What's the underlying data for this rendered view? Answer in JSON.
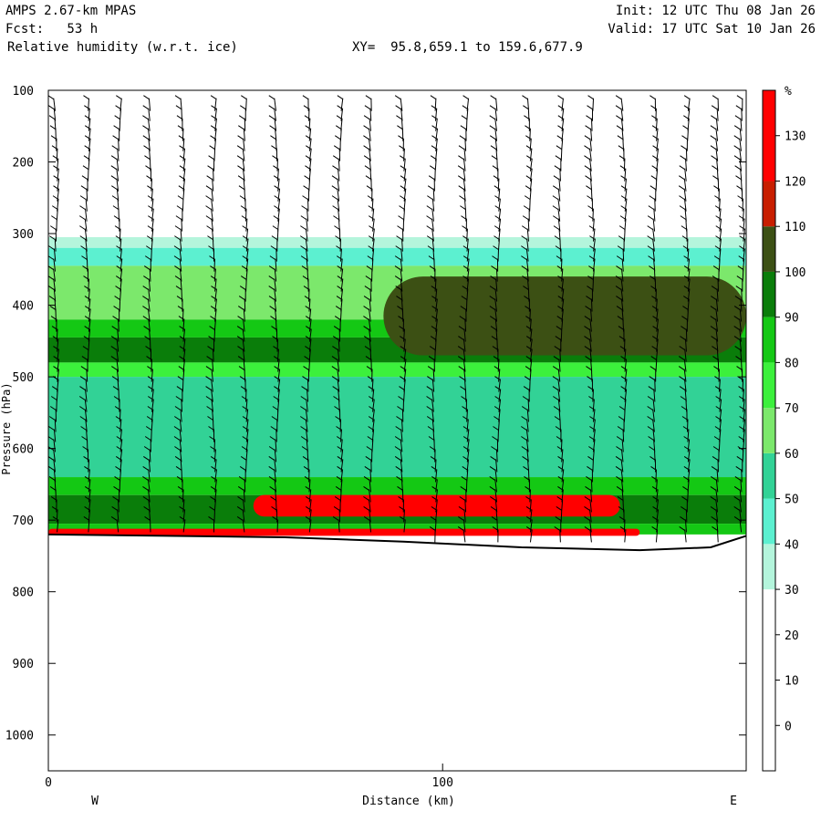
{
  "header": {
    "model": "AMPS 2.67-km MPAS",
    "fcst": "Fcst:   53 h",
    "field": "Relative humidity (w.r.t. ice)",
    "xy": "XY=  95.8,659.1 to 159.6,677.9",
    "init": "Init: 12 UTC Thu 08 Jan 26",
    "valid": "Valid: 17 UTC Sat 10 Jan 26"
  },
  "axes": {
    "ylabel": "Pressure (hPa)",
    "xlabel": "Distance (km)",
    "west": "W",
    "east": "E",
    "colorbar_unit": "%"
  },
  "chart_data": {
    "type": "heatmap",
    "field": "Relative humidity (w.r.t. ice)",
    "x_axis": {
      "label": "Distance (km)",
      "range": [
        0,
        177
      ],
      "ticks": [
        0,
        100
      ]
    },
    "y_axis": {
      "label": "Pressure (hPa)",
      "range": [
        100,
        1050
      ],
      "inverted": true,
      "ticks": [
        100,
        200,
        300,
        400,
        500,
        600,
        700,
        800,
        900,
        1000
      ]
    },
    "colorbar": {
      "unit": "%",
      "labels": [
        0,
        10,
        20,
        30,
        40,
        50,
        60,
        70,
        80,
        90,
        100,
        110,
        120,
        130
      ],
      "bins": [
        {
          "from": -10,
          "to": 30,
          "color": "#ffffff"
        },
        {
          "from": 30,
          "to": 40,
          "color": "#b4f5dc"
        },
        {
          "from": 40,
          "to": 50,
          "color": "#5cf0d0"
        },
        {
          "from": 50,
          "to": 60,
          "color": "#32d296"
        },
        {
          "from": 60,
          "to": 70,
          "color": "#7ce86c"
        },
        {
          "from": 70,
          "to": 80,
          "color": "#3cf03c"
        },
        {
          "from": 80,
          "to": 90,
          "color": "#14c814"
        },
        {
          "from": 90,
          "to": 100,
          "color": "#0a7d0a"
        },
        {
          "from": 100,
          "to": 110,
          "color": "#3c5014"
        },
        {
          "from": 110,
          "to": 120,
          "color": "#c81e00"
        },
        {
          "from": 120,
          "to": 140,
          "color": "#ff0000"
        }
      ]
    },
    "terrain_pressure_hpa": [
      {
        "x": 0,
        "p": 720
      },
      {
        "x": 30,
        "p": 722
      },
      {
        "x": 60,
        "p": 724
      },
      {
        "x": 90,
        "p": 730
      },
      {
        "x": 120,
        "p": 738
      },
      {
        "x": 150,
        "p": 742
      },
      {
        "x": 168,
        "p": 738
      },
      {
        "x": 177,
        "p": 722
      }
    ],
    "humidity_layers": [
      {
        "p_top": 305,
        "p_bottom": 320,
        "rh": 35
      },
      {
        "p_top": 320,
        "p_bottom": 345,
        "rh": 45
      },
      {
        "p_top": 345,
        "p_bottom": 420,
        "rh": 65
      },
      {
        "p_top": 420,
        "p_bottom": 445,
        "rh": 85
      },
      {
        "p_top": 445,
        "p_bottom": 480,
        "rh": 95
      },
      {
        "p_top": 480,
        "p_bottom": 500,
        "rh": 75
      },
      {
        "p_top": 500,
        "p_bottom": 640,
        "rh": 55
      },
      {
        "p_top": 640,
        "p_bottom": 665,
        "rh": 85
      },
      {
        "p_top": 665,
        "p_bottom": 705,
        "rh": 95
      },
      {
        "p_top": 705,
        "p_bottom": 720,
        "rh": 80
      }
    ],
    "features": [
      {
        "name": "moist-layer-east",
        "x_from": 85,
        "x_to": 177,
        "p_top": 360,
        "p_bottom": 470,
        "rh": 105
      },
      {
        "name": "supersaturated-band",
        "x_from": 52,
        "x_to": 145,
        "p_top": 665,
        "p_bottom": 695,
        "rh": 125
      },
      {
        "name": "surface-supersaturation",
        "x_from": 0,
        "x_to": 150,
        "p_top": 712,
        "p_bottom": 722,
        "rh": 125
      }
    ],
    "wind_barb_columns_km": [
      2,
      10,
      18,
      26,
      34,
      42,
      50,
      58,
      66,
      74,
      82,
      90,
      98,
      106,
      114,
      122,
      130,
      138,
      146,
      154,
      162,
      170,
      176
    ]
  }
}
